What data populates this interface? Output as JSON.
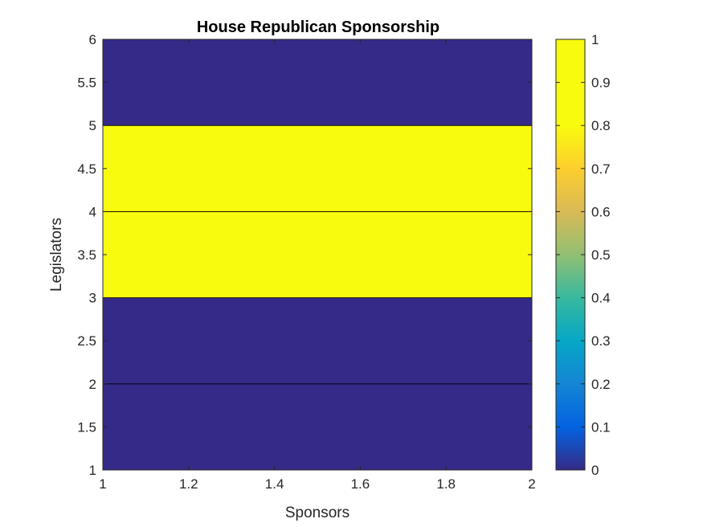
{
  "chart_data": {
    "type": "heatmap",
    "title": "House Republican Sponsorship",
    "xlabel": "Sponsors",
    "ylabel": "Legislators",
    "xlim": [
      1,
      2
    ],
    "ylim": [
      1,
      6
    ],
    "x_ticks": [
      "1",
      "1.2",
      "1.4",
      "1.6",
      "1.8",
      "2"
    ],
    "x_tick_values": [
      1,
      1.2,
      1.4,
      1.6,
      1.8,
      2
    ],
    "y_ticks": [
      "1",
      "1.5",
      "2",
      "2.5",
      "3",
      "3.5",
      "4",
      "4.5",
      "5",
      "5.5",
      "6"
    ],
    "y_tick_values": [
      1,
      1.5,
      2,
      2.5,
      3,
      3.5,
      4,
      4.5,
      5,
      5.5,
      6
    ],
    "rows": [
      {
        "y": [
          1,
          2
        ],
        "value": 0
      },
      {
        "y": [
          2,
          3
        ],
        "value": 0
      },
      {
        "y": [
          3,
          4
        ],
        "value": 1
      },
      {
        "y": [
          4,
          5
        ],
        "value": 1
      },
      {
        "y": [
          5,
          6
        ],
        "value": 0
      }
    ],
    "colorbar": {
      "range": [
        0,
        1
      ],
      "ticks": [
        "0",
        "0.1",
        "0.2",
        "0.3",
        "0.4",
        "0.5",
        "0.6",
        "0.7",
        "0.8",
        "0.9",
        "1"
      ],
      "tick_values": [
        0,
        0.1,
        0.2,
        0.3,
        0.4,
        0.5,
        0.6,
        0.7,
        0.8,
        0.9,
        1
      ],
      "colormap": "parula",
      "low_color": "#352a87",
      "high_color": "#f9fb0e"
    },
    "grid": false
  }
}
